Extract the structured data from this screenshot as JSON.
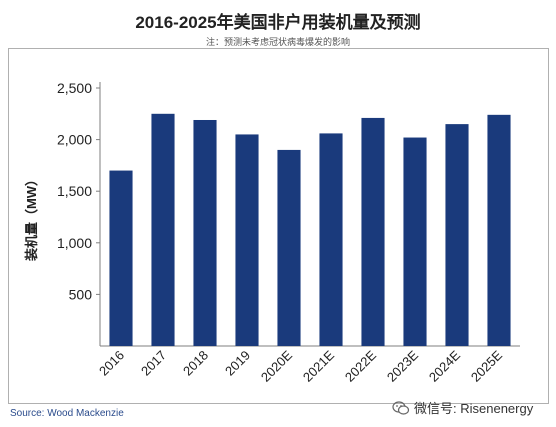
{
  "header": {
    "title": "2016-2025年美国非户用装机量及预测",
    "note": "注：预测未考虑冠状病毒爆发的影响"
  },
  "footer": {
    "source": "Source: Wood Mackenzie",
    "watermark": "微信号: Risenenergy"
  },
  "colors": {
    "bar": "#1a3a7c",
    "axis": "#7f7f7f",
    "source_text": "#2a4b8c"
  },
  "chart_data": {
    "type": "bar",
    "title": "2016-2025年美国非户用装机量及预测",
    "subtitle": "注：预测未考虑冠状病毒爆发的影响",
    "xlabel": "",
    "ylabel": "装机量（MW）",
    "categories": [
      "2016",
      "2017",
      "2018",
      "2019",
      "2020E",
      "2021E",
      "2022E",
      "2023E",
      "2024E",
      "2025E"
    ],
    "values": [
      1700,
      2250,
      2190,
      2050,
      1900,
      2060,
      2210,
      2020,
      2150,
      2240
    ],
    "ylim": [
      0,
      2500
    ],
    "yticks": [
      500,
      1000,
      1500,
      2000,
      2500
    ],
    "ytick_labels": [
      "500",
      "1,000",
      "1,500",
      "2,000",
      "2,500"
    ],
    "grid": false,
    "legend": "none"
  }
}
